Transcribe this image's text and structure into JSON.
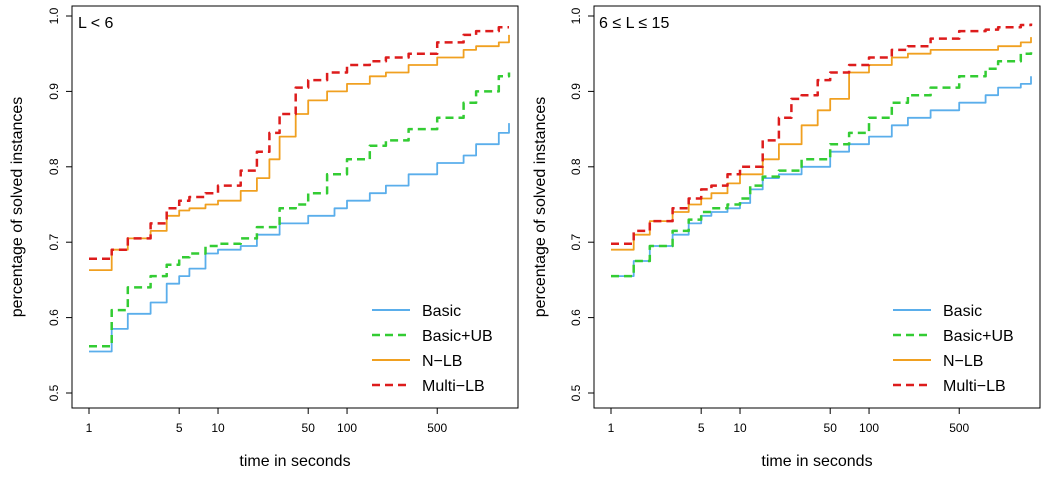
{
  "chart_data": [
    {
      "type": "line",
      "title": "L < 6",
      "xlabel": "time in seconds",
      "ylabel": "percentage of solved instances",
      "x_scale": "log",
      "xlim": [
        1,
        1800
      ],
      "ylim": [
        0.5,
        1.0
      ],
      "x_ticks": [
        1,
        5,
        10,
        50,
        100,
        500
      ],
      "x_tick_labels": [
        "1",
        "5",
        "10",
        "50",
        "100",
        "500"
      ],
      "y_ticks": [
        0.5,
        0.6,
        0.7,
        0.8,
        0.9,
        1.0
      ],
      "y_tick_labels": [
        "0.5",
        "0.6",
        "0.7",
        "0.8",
        "0.9",
        "1.0"
      ],
      "grid": false,
      "legend_position": "bottom-right",
      "series": [
        {
          "name": "Basic",
          "color": "#5aaeeb",
          "dash": "solid",
          "x": [
            1,
            1.5,
            2,
            3,
            4,
            5,
            6,
            8,
            10,
            15,
            20,
            30,
            50,
            80,
            100,
            150,
            200,
            300,
            500,
            800,
            1000,
            1500,
            1800
          ],
          "y": [
            0.555,
            0.585,
            0.605,
            0.62,
            0.645,
            0.655,
            0.665,
            0.685,
            0.69,
            0.695,
            0.71,
            0.725,
            0.735,
            0.745,
            0.755,
            0.765,
            0.775,
            0.79,
            0.805,
            0.815,
            0.83,
            0.845,
            0.858
          ]
        },
        {
          "name": "Basic+UB",
          "color": "#33cc33",
          "dash": "dashed",
          "x": [
            1,
            1.5,
            2,
            3,
            4,
            5,
            6,
            8,
            10,
            15,
            20,
            30,
            40,
            50,
            70,
            100,
            150,
            200,
            300,
            500,
            800,
            1000,
            1500,
            1800
          ],
          "y": [
            0.562,
            0.61,
            0.64,
            0.655,
            0.67,
            0.68,
            0.685,
            0.695,
            0.698,
            0.705,
            0.72,
            0.745,
            0.75,
            0.765,
            0.79,
            0.81,
            0.828,
            0.835,
            0.85,
            0.865,
            0.885,
            0.9,
            0.92,
            0.925
          ]
        },
        {
          "name": "N−LB",
          "color": "#f0a020",
          "dash": "solid",
          "x": [
            1,
            1.5,
            2,
            3,
            4,
            5,
            6,
            8,
            10,
            15,
            20,
            25,
            30,
            40,
            50,
            70,
            100,
            150,
            200,
            300,
            500,
            800,
            1000,
            1500,
            1800
          ],
          "y": [
            0.663,
            0.69,
            0.705,
            0.715,
            0.735,
            0.742,
            0.745,
            0.75,
            0.755,
            0.768,
            0.785,
            0.81,
            0.84,
            0.87,
            0.888,
            0.9,
            0.91,
            0.92,
            0.925,
            0.935,
            0.945,
            0.955,
            0.96,
            0.965,
            0.975
          ]
        },
        {
          "name": "Multi−LB",
          "color": "#dd1c1c",
          "dash": "dashed",
          "x": [
            1,
            1.5,
            2,
            3,
            4,
            5,
            6,
            8,
            10,
            15,
            20,
            25,
            30,
            40,
            50,
            70,
            100,
            150,
            200,
            300,
            500,
            800,
            1000,
            1500,
            1800
          ],
          "y": [
            0.678,
            0.69,
            0.705,
            0.725,
            0.745,
            0.755,
            0.76,
            0.765,
            0.775,
            0.795,
            0.82,
            0.845,
            0.87,
            0.905,
            0.915,
            0.925,
            0.935,
            0.94,
            0.945,
            0.95,
            0.965,
            0.975,
            0.98,
            0.985,
            0.985
          ]
        }
      ]
    },
    {
      "type": "line",
      "title": "6 ≤ L ≤ 15",
      "xlabel": "time in seconds",
      "ylabel": "percentage of solved instances",
      "x_scale": "log",
      "xlim": [
        1,
        1800
      ],
      "ylim": [
        0.5,
        1.0
      ],
      "x_ticks": [
        1,
        5,
        10,
        50,
        100,
        500
      ],
      "x_tick_labels": [
        "1",
        "5",
        "10",
        "50",
        "100",
        "500"
      ],
      "y_ticks": [
        0.5,
        0.6,
        0.7,
        0.8,
        0.9,
        1.0
      ],
      "y_tick_labels": [
        "0.5",
        "0.6",
        "0.7",
        "0.8",
        "0.9",
        "1.0"
      ],
      "grid": false,
      "legend_position": "bottom-right",
      "series": [
        {
          "name": "Basic",
          "color": "#5aaeeb",
          "dash": "solid",
          "x": [
            1,
            1.5,
            2,
            3,
            4,
            5,
            6,
            8,
            10,
            12,
            15,
            20,
            30,
            50,
            70,
            100,
            150,
            200,
            300,
            500,
            800,
            1000,
            1500,
            1800
          ],
          "y": [
            0.655,
            0.675,
            0.695,
            0.71,
            0.725,
            0.735,
            0.74,
            0.745,
            0.752,
            0.77,
            0.785,
            0.79,
            0.8,
            0.82,
            0.83,
            0.84,
            0.855,
            0.865,
            0.875,
            0.885,
            0.895,
            0.905,
            0.91,
            0.92
          ]
        },
        {
          "name": "Basic+UB",
          "color": "#33cc33",
          "dash": "dashed",
          "x": [
            1,
            1.5,
            2,
            3,
            4,
            5,
            6,
            8,
            10,
            12,
            15,
            20,
            30,
            50,
            70,
            100,
            150,
            200,
            300,
            500,
            800,
            1000,
            1500,
            1800
          ],
          "y": [
            0.655,
            0.675,
            0.695,
            0.715,
            0.73,
            0.74,
            0.745,
            0.75,
            0.758,
            0.775,
            0.787,
            0.795,
            0.81,
            0.83,
            0.845,
            0.865,
            0.885,
            0.895,
            0.905,
            0.92,
            0.93,
            0.94,
            0.95,
            0.952
          ]
        },
        {
          "name": "N−LB",
          "color": "#f0a020",
          "dash": "solid",
          "x": [
            1,
            1.5,
            2,
            3,
            4,
            5,
            6,
            8,
            10,
            15,
            20,
            30,
            40,
            50,
            70,
            100,
            150,
            200,
            300,
            500,
            800,
            1000,
            1500,
            1800
          ],
          "y": [
            0.69,
            0.71,
            0.728,
            0.74,
            0.75,
            0.758,
            0.765,
            0.778,
            0.79,
            0.81,
            0.83,
            0.855,
            0.875,
            0.89,
            0.925,
            0.935,
            0.945,
            0.95,
            0.955,
            0.955,
            0.955,
            0.96,
            0.965,
            0.972
          ]
        },
        {
          "name": "Multi−LB",
          "color": "#dd1c1c",
          "dash": "dashed",
          "x": [
            1,
            1.5,
            2,
            3,
            4,
            5,
            6,
            8,
            10,
            15,
            20,
            25,
            30,
            40,
            50,
            70,
            100,
            150,
            200,
            300,
            500,
            800,
            1000,
            1500,
            1800
          ],
          "y": [
            0.698,
            0.715,
            0.728,
            0.745,
            0.758,
            0.77,
            0.775,
            0.79,
            0.8,
            0.835,
            0.865,
            0.89,
            0.895,
            0.915,
            0.925,
            0.935,
            0.945,
            0.955,
            0.96,
            0.97,
            0.98,
            0.982,
            0.985,
            0.988,
            0.99
          ]
        }
      ]
    }
  ]
}
